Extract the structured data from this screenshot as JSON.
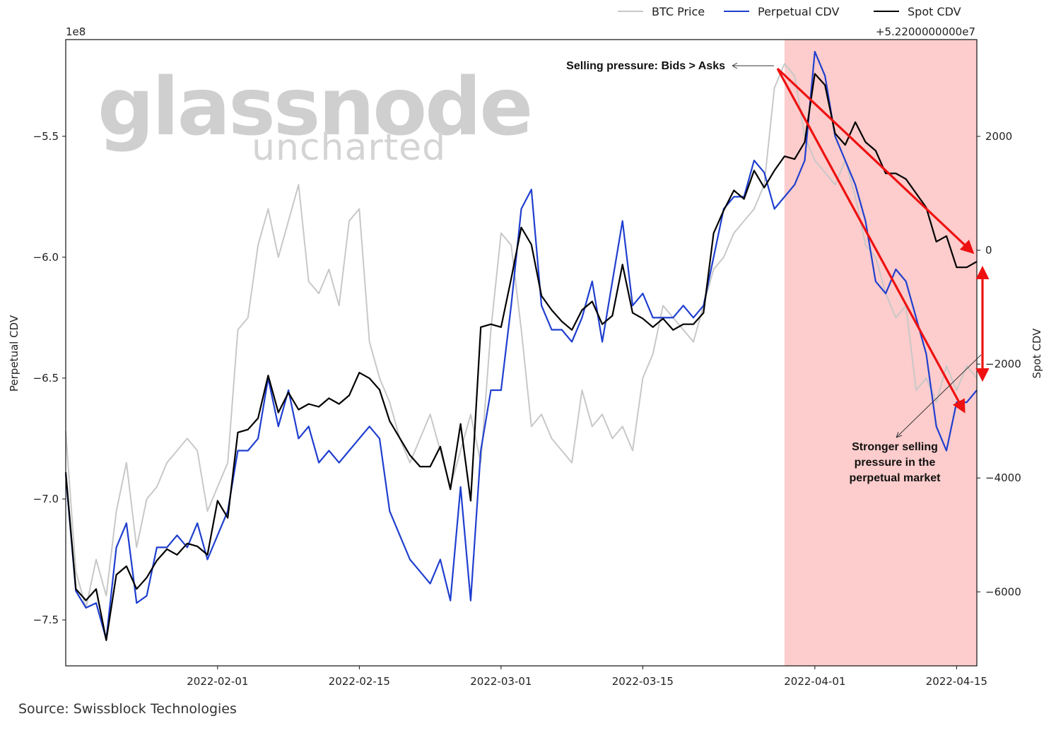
{
  "source_text": "Source: Swissblock Technologies",
  "watermark": {
    "line1": "glassnode",
    "line2": "uncharted"
  },
  "chart_data": {
    "type": "line",
    "xlabel": "",
    "xlim": [
      "2022-01-17",
      "2022-04-17"
    ],
    "x_ticks": [
      "2022-02-01",
      "2022-02-15",
      "2022-03-01",
      "2022-03-15",
      "2022-04-01",
      "2022-04-15"
    ],
    "left_axis": {
      "label": "Perpetual CDV",
      "scale_label": "1e8",
      "ylim": [
        -7.69,
        -5.1
      ],
      "ticks": [
        -7.5,
        -7.0,
        -6.5,
        -6.0,
        -5.5
      ],
      "tick_labels": [
        "−7.5",
        "−7.0",
        "−6.5",
        "−6.0",
        "−5.5"
      ]
    },
    "right_axis": {
      "label": "Spot CDV",
      "offset_label": "+5.2200000000e7",
      "ylim": [
        -7300,
        3700
      ],
      "ticks": [
        2000,
        0,
        -2000,
        -4000,
        -6000
      ],
      "tick_labels": [
        "2000",
        "0",
        "−2000",
        "−4000",
        "−6000"
      ]
    },
    "legend": {
      "placement": "top-right",
      "entries": [
        "BTC Price",
        "Perpetual CDV",
        "Spot CDV"
      ]
    },
    "colors": {
      "btc": "#c8c8c8",
      "perp": "#1f3fcf",
      "spot": "#000000",
      "shade": "#fdcccc",
      "arrow": "#ee1111"
    },
    "highlight_range": [
      "2022-03-29",
      "2022-04-17"
    ],
    "series": [
      {
        "name": "BTC Price",
        "axis": "left",
        "x": [
          "2022-01-17",
          "2022-01-18",
          "2022-01-19",
          "2022-01-20",
          "2022-01-21",
          "2022-01-22",
          "2022-01-23",
          "2022-01-24",
          "2022-01-25",
          "2022-01-26",
          "2022-01-27",
          "2022-01-28",
          "2022-01-29",
          "2022-01-30",
          "2022-01-31",
          "2022-02-01",
          "2022-02-02",
          "2022-02-03",
          "2022-02-04",
          "2022-02-05",
          "2022-02-06",
          "2022-02-07",
          "2022-02-08",
          "2022-02-09",
          "2022-02-10",
          "2022-02-11",
          "2022-02-12",
          "2022-02-13",
          "2022-02-14",
          "2022-02-15",
          "2022-02-16",
          "2022-02-17",
          "2022-02-18",
          "2022-02-19",
          "2022-02-20",
          "2022-02-21",
          "2022-02-22",
          "2022-02-23",
          "2022-02-24",
          "2022-02-25",
          "2022-02-26",
          "2022-02-27",
          "2022-02-28",
          "2022-03-01",
          "2022-03-02",
          "2022-03-03",
          "2022-03-04",
          "2022-03-05",
          "2022-03-06",
          "2022-03-07",
          "2022-03-08",
          "2022-03-09",
          "2022-03-10",
          "2022-03-11",
          "2022-03-12",
          "2022-03-13",
          "2022-03-14",
          "2022-03-15",
          "2022-03-16",
          "2022-03-17",
          "2022-03-18",
          "2022-03-19",
          "2022-03-20",
          "2022-03-21",
          "2022-03-22",
          "2022-03-23",
          "2022-03-24",
          "2022-03-25",
          "2022-03-26",
          "2022-03-27",
          "2022-03-28",
          "2022-03-29",
          "2022-03-30",
          "2022-03-31",
          "2022-04-01",
          "2022-04-02",
          "2022-04-03",
          "2022-04-04",
          "2022-04-05",
          "2022-04-06",
          "2022-04-07",
          "2022-04-08",
          "2022-04-09",
          "2022-04-10",
          "2022-04-11",
          "2022-04-12",
          "2022-04-13",
          "2022-04-14",
          "2022-04-15",
          "2022-04-16",
          "2022-04-17"
        ],
        "values": [
          -6.72,
          -7.3,
          -7.45,
          -7.25,
          -7.4,
          -7.05,
          -6.85,
          -7.2,
          -7.0,
          -6.95,
          -6.85,
          -6.8,
          -6.75,
          -6.8,
          -7.05,
          -6.95,
          -6.85,
          -6.3,
          -6.25,
          -5.95,
          -5.8,
          -6.0,
          -5.85,
          -5.7,
          -6.1,
          -6.15,
          -6.05,
          -6.2,
          -5.85,
          -5.8,
          -6.35,
          -6.5,
          -6.6,
          -6.75,
          -6.85,
          -6.75,
          -6.65,
          -6.8,
          -6.95,
          -6.8,
          -6.65,
          -6.85,
          -6.3,
          -5.9,
          -5.95,
          -6.3,
          -6.7,
          -6.65,
          -6.75,
          -6.8,
          -6.85,
          -6.55,
          -6.7,
          -6.65,
          -6.75,
          -6.7,
          -6.8,
          -6.5,
          -6.4,
          -6.2,
          -6.25,
          -6.3,
          -6.35,
          -6.2,
          -6.05,
          -6.0,
          -5.9,
          -5.85,
          -5.8,
          -5.7,
          -5.3,
          -5.2,
          -5.25,
          -5.5,
          -5.6,
          -5.65,
          -5.7,
          -5.6,
          -5.75,
          -5.95,
          -6.0,
          -6.15,
          -6.25,
          -6.2,
          -6.55,
          -6.5,
          -6.6,
          -6.45,
          -6.55,
          -6.45,
          -6.5
        ]
      },
      {
        "name": "Perpetual CDV",
        "axis": "left",
        "x": [
          "2022-01-17",
          "2022-01-18",
          "2022-01-19",
          "2022-01-20",
          "2022-01-21",
          "2022-01-22",
          "2022-01-23",
          "2022-01-24",
          "2022-01-25",
          "2022-01-26",
          "2022-01-27",
          "2022-01-28",
          "2022-01-29",
          "2022-01-30",
          "2022-01-31",
          "2022-02-01",
          "2022-02-02",
          "2022-02-03",
          "2022-02-04",
          "2022-02-05",
          "2022-02-06",
          "2022-02-07",
          "2022-02-08",
          "2022-02-09",
          "2022-02-10",
          "2022-02-11",
          "2022-02-12",
          "2022-02-13",
          "2022-02-14",
          "2022-02-15",
          "2022-02-16",
          "2022-02-17",
          "2022-02-18",
          "2022-02-19",
          "2022-02-20",
          "2022-02-21",
          "2022-02-22",
          "2022-02-23",
          "2022-02-24",
          "2022-02-25",
          "2022-02-26",
          "2022-02-27",
          "2022-02-28",
          "2022-03-01",
          "2022-03-02",
          "2022-03-03",
          "2022-03-04",
          "2022-03-05",
          "2022-03-06",
          "2022-03-07",
          "2022-03-08",
          "2022-03-09",
          "2022-03-10",
          "2022-03-11",
          "2022-03-12",
          "2022-03-13",
          "2022-03-14",
          "2022-03-15",
          "2022-03-16",
          "2022-03-17",
          "2022-03-18",
          "2022-03-19",
          "2022-03-20",
          "2022-03-21",
          "2022-03-22",
          "2022-03-23",
          "2022-03-24",
          "2022-03-25",
          "2022-03-26",
          "2022-03-27",
          "2022-03-28",
          "2022-03-29",
          "2022-03-30",
          "2022-03-31",
          "2022-04-01",
          "2022-04-02",
          "2022-04-03",
          "2022-04-04",
          "2022-04-05",
          "2022-04-06",
          "2022-04-07",
          "2022-04-08",
          "2022-04-09",
          "2022-04-10",
          "2022-04-11",
          "2022-04-12",
          "2022-04-13",
          "2022-04-14",
          "2022-04-15",
          "2022-04-16",
          "2022-04-17"
        ],
        "values": [
          -6.9,
          -7.38,
          -7.45,
          -7.43,
          -7.58,
          -7.2,
          -7.1,
          -7.43,
          -7.4,
          -7.2,
          -7.2,
          -7.15,
          -7.2,
          -7.1,
          -7.25,
          -7.15,
          -7.05,
          -6.8,
          -6.8,
          -6.75,
          -6.5,
          -6.7,
          -6.55,
          -6.75,
          -6.7,
          -6.85,
          -6.8,
          -6.85,
          -6.8,
          -6.75,
          -6.7,
          -6.75,
          -7.05,
          -7.15,
          -7.25,
          -7.3,
          -7.35,
          -7.25,
          -7.42,
          -6.95,
          -7.42,
          -6.8,
          -6.55,
          -6.55,
          -6.2,
          -5.8,
          -5.72,
          -6.2,
          -6.3,
          -6.3,
          -6.35,
          -6.25,
          -6.1,
          -6.35,
          -6.1,
          -5.85,
          -6.2,
          -6.15,
          -6.25,
          -6.25,
          -6.25,
          -6.2,
          -6.25,
          -6.2,
          -6.0,
          -5.8,
          -5.75,
          -5.75,
          -5.6,
          -5.65,
          -5.8,
          -5.75,
          -5.7,
          -5.6,
          -5.15,
          -5.25,
          -5.5,
          -5.6,
          -5.7,
          -5.85,
          -6.1,
          -6.15,
          -6.05,
          -6.1,
          -6.25,
          -6.4,
          -6.7,
          -6.8,
          -6.6,
          -6.6,
          -6.55
        ]
      },
      {
        "name": "Spot CDV",
        "axis": "right",
        "x": [
          "2022-01-17",
          "2022-01-18",
          "2022-01-19",
          "2022-01-20",
          "2022-01-21",
          "2022-01-22",
          "2022-01-23",
          "2022-01-24",
          "2022-01-25",
          "2022-01-26",
          "2022-01-27",
          "2022-01-28",
          "2022-01-29",
          "2022-01-30",
          "2022-01-31",
          "2022-02-01",
          "2022-02-02",
          "2022-02-03",
          "2022-02-04",
          "2022-02-05",
          "2022-02-06",
          "2022-02-07",
          "2022-02-08",
          "2022-02-09",
          "2022-02-10",
          "2022-02-11",
          "2022-02-12",
          "2022-02-13",
          "2022-02-14",
          "2022-02-15",
          "2022-02-16",
          "2022-02-17",
          "2022-02-18",
          "2022-02-19",
          "2022-02-20",
          "2022-02-21",
          "2022-02-22",
          "2022-02-23",
          "2022-02-24",
          "2022-02-25",
          "2022-02-26",
          "2022-02-27",
          "2022-02-28",
          "2022-03-01",
          "2022-03-02",
          "2022-03-03",
          "2022-03-04",
          "2022-03-05",
          "2022-03-06",
          "2022-03-07",
          "2022-03-08",
          "2022-03-09",
          "2022-03-10",
          "2022-03-11",
          "2022-03-12",
          "2022-03-13",
          "2022-03-14",
          "2022-03-15",
          "2022-03-16",
          "2022-03-17",
          "2022-03-18",
          "2022-03-19",
          "2022-03-20",
          "2022-03-21",
          "2022-03-22",
          "2022-03-23",
          "2022-03-24",
          "2022-03-25",
          "2022-03-26",
          "2022-03-27",
          "2022-03-28",
          "2022-03-29",
          "2022-03-30",
          "2022-03-31",
          "2022-04-01",
          "2022-04-02",
          "2022-04-03",
          "2022-04-04",
          "2022-04-05",
          "2022-04-06",
          "2022-04-07",
          "2022-04-08",
          "2022-04-09",
          "2022-04-10",
          "2022-04-11",
          "2022-04-12",
          "2022-04-13",
          "2022-04-14",
          "2022-04-15",
          "2022-04-16",
          "2022-04-17"
        ],
        "values": [
          -3900,
          -5950,
          -6150,
          -5950,
          -6850,
          -5700,
          -5550,
          -5950,
          -5750,
          -5450,
          -5250,
          -5350,
          -5150,
          -5200,
          -5350,
          -4400,
          -4700,
          -3200,
          -3150,
          -2950,
          -2200,
          -2850,
          -2500,
          -2800,
          -2700,
          -2750,
          -2600,
          -2700,
          -2550,
          -2150,
          -2250,
          -2450,
          -3000,
          -3300,
          -3600,
          -3800,
          -3800,
          -3450,
          -4200,
          -3050,
          -4400,
          -1350,
          -1300,
          -1350,
          -500,
          400,
          100,
          -800,
          -1050,
          -1250,
          -1400,
          -1050,
          -900,
          -1300,
          -1150,
          -250,
          -1100,
          -1200,
          -1350,
          -1200,
          -1400,
          -1300,
          -1300,
          -1100,
          300,
          700,
          1050,
          900,
          1400,
          1100,
          1400,
          1650,
          1600,
          1900,
          3100,
          2900,
          2050,
          1850,
          2250,
          1900,
          1750,
          1350,
          1350,
          1250,
          1000,
          750,
          150,
          250,
          -300,
          -300,
          -200
        ]
      }
    ],
    "annotations": [
      {
        "name": "selling-pressure",
        "text": "Selling pressure: Bids > Asks"
      },
      {
        "name": "stronger-selling",
        "lines": [
          "Stronger selling",
          "pressure in the",
          "perpetual market"
        ]
      }
    ]
  }
}
